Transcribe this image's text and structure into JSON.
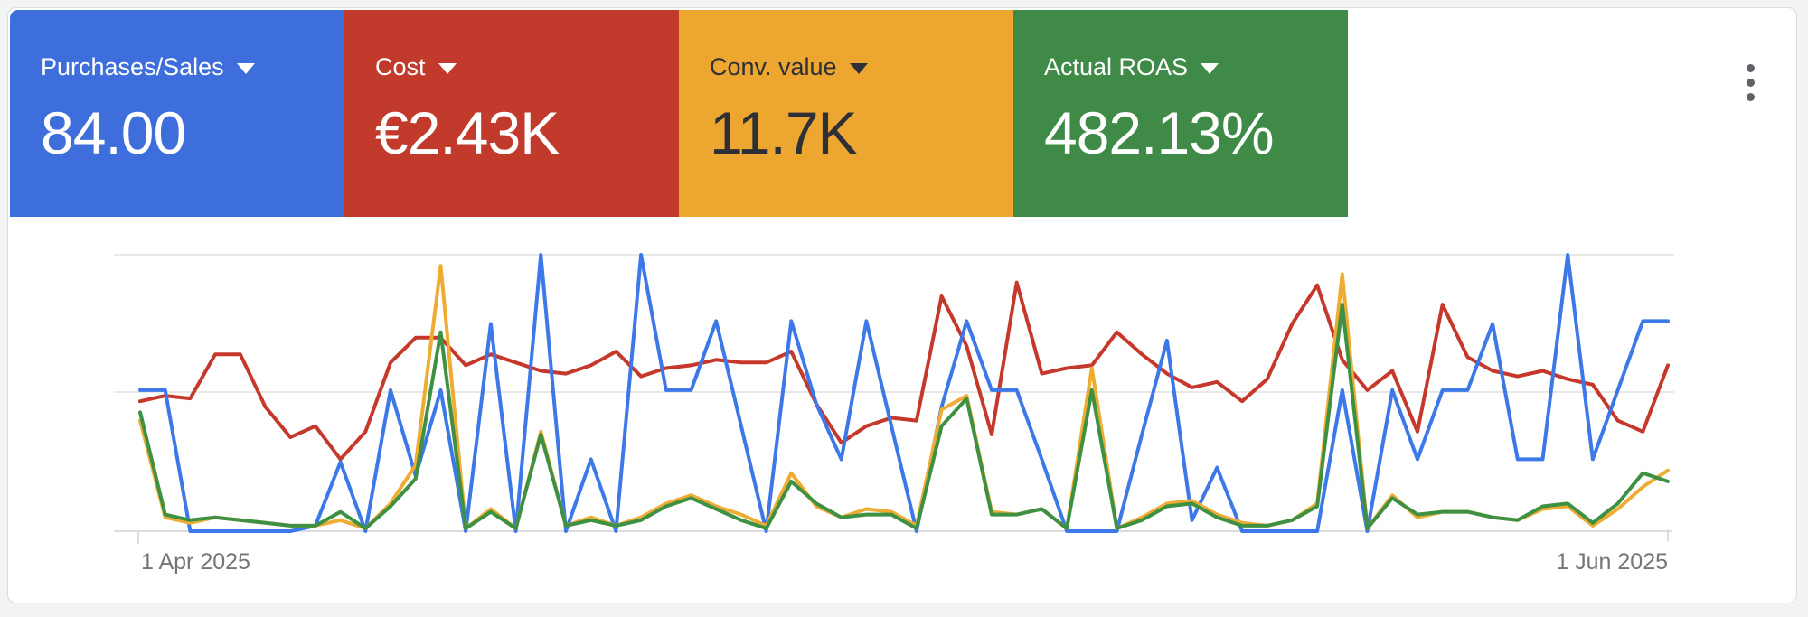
{
  "panel": {
    "more_menu_icon": "kebab-vertical-icon"
  },
  "metrics": [
    {
      "id": "purchases_sales",
      "label": "Purchases/Sales",
      "value": "84.00",
      "bg": "#3d6edb",
      "text_color": "#ffffff"
    },
    {
      "id": "cost",
      "label": "Cost",
      "value": "€2.43K",
      "bg": "#c23a2c",
      "text_color": "#ffffff"
    },
    {
      "id": "conv_value",
      "label": "Conv. value",
      "value": "11.7K",
      "bg": "#eda630",
      "text_color": "#2d3137"
    },
    {
      "id": "actual_roas",
      "label": "Actual ROAS",
      "value": "482.13%",
      "bg": "#3f8a46",
      "text_color": "#ffffff"
    }
  ],
  "chart_data": {
    "type": "line",
    "title": "",
    "xlabel": "",
    "ylabel": "",
    "x_axis": {
      "start_label": "1 Apr 2025",
      "end_label": "1 Jun 2025",
      "points": 62,
      "interval": "daily"
    },
    "y_axis": {
      "min": 0,
      "max": 100,
      "gridlines": [
        0,
        50,
        100
      ],
      "labels_shown": false,
      "unit": "relative scale: 100 = top gridline, 50 = middle gridline, 0 = baseline (no tick labels shown)"
    },
    "legend_position": "none (series colors match scorecards)",
    "series": [
      {
        "id": "purchases_sales",
        "name": "Purchases/Sales",
        "color": "#3c78e8",
        "values": [
          51,
          51,
          0,
          0,
          0,
          0,
          0,
          2,
          25,
          0,
          51,
          20,
          51,
          0,
          75,
          0,
          100,
          0,
          26,
          0,
          100,
          51,
          51,
          76,
          38,
          0,
          76,
          46,
          26,
          76,
          38,
          0,
          45,
          76,
          51,
          51,
          26,
          0,
          0,
          0,
          35,
          69,
          4,
          23,
          0,
          0,
          0,
          0,
          51,
          0,
          51,
          26,
          51,
          51,
          75,
          26,
          26,
          100,
          26,
          51,
          76,
          76
        ]
      },
      {
        "id": "cost",
        "name": "Cost",
        "color": "#c5382b",
        "values": [
          47,
          49,
          48,
          64,
          64,
          45,
          34,
          38,
          26,
          36,
          61,
          70,
          70,
          60,
          64,
          61,
          58,
          57,
          60,
          65,
          56,
          59,
          60,
          62,
          61,
          61,
          65,
          46,
          32,
          38,
          41,
          40,
          85,
          67,
          35,
          90,
          57,
          59,
          60,
          72,
          64,
          57,
          52,
          54,
          47,
          55,
          75,
          89,
          62,
          51,
          58,
          36,
          82,
          63,
          58,
          56,
          58,
          55,
          53,
          40,
          36,
          60
        ]
      },
      {
        "id": "conv_value",
        "name": "Conv. value",
        "color": "#efac33",
        "values": [
          40,
          5,
          3,
          5,
          4,
          3,
          2,
          2,
          4,
          1,
          10,
          24,
          96,
          1,
          8,
          1,
          36,
          2,
          5,
          2,
          5,
          10,
          13,
          9,
          6,
          2,
          21,
          9,
          5,
          8,
          7,
          2,
          44,
          49,
          7,
          6,
          8,
          1,
          59,
          1,
          5,
          10,
          11,
          6,
          3,
          2,
          4,
          10,
          93,
          1,
          13,
          5,
          7,
          7,
          5,
          4,
          8,
          9,
          2,
          8,
          16,
          22
        ]
      },
      {
        "id": "actual_roas",
        "name": "Actual ROAS",
        "color": "#3e9142",
        "values": [
          43,
          6,
          4,
          5,
          4,
          3,
          2,
          2,
          7,
          1,
          9,
          19,
          72,
          1,
          7,
          1,
          35,
          2,
          4,
          2,
          4,
          9,
          12,
          8,
          4,
          1,
          18,
          10,
          5,
          6,
          6,
          1,
          38,
          48,
          6,
          6,
          8,
          1,
          51,
          1,
          4,
          9,
          10,
          5,
          2,
          2,
          4,
          9,
          82,
          1,
          12,
          6,
          7,
          7,
          5,
          4,
          9,
          10,
          3,
          10,
          21,
          18
        ]
      }
    ]
  }
}
